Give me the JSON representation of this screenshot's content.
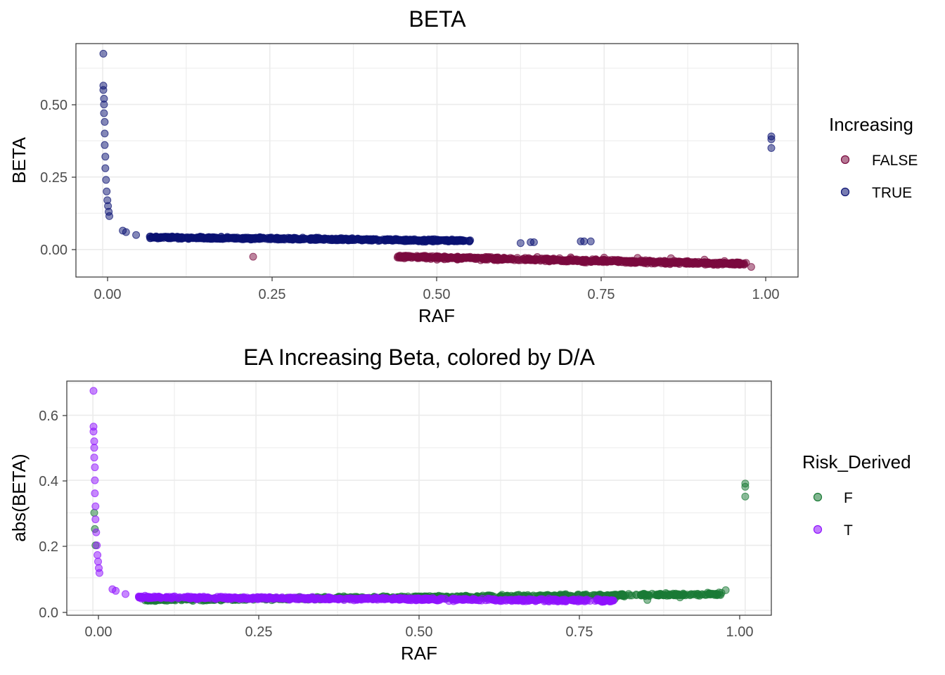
{
  "chart_data": [
    {
      "type": "scatter",
      "title": "BETA",
      "xlabel": "RAF",
      "ylabel": "BETA",
      "xlim": [
        -0.04,
        1.04
      ],
      "ylim": [
        -0.095,
        0.71
      ],
      "xticks": [
        0,
        0.25,
        0.5,
        0.75,
        1.0
      ],
      "xtick_labels": [
        "0.00",
        "0.25",
        "0.50",
        "0.75",
        "1.00"
      ],
      "yticks": [
        0,
        0.25,
        0.5
      ],
      "ytick_labels": [
        "0.00",
        "0.25",
        "0.50"
      ],
      "grid": true,
      "legend": {
        "title": "Increasing",
        "placement": "right",
        "entries": [
          {
            "label": "FALSE",
            "color": "#7a0a3e"
          },
          {
            "label": "TRUE",
            "color": "#0a1172"
          }
        ]
      },
      "series": [
        {
          "name": "FALSE",
          "color": "#7a0a3e",
          "points": [
            [
              0.225,
              -0.025
            ],
            [
              0.45,
              -0.022
            ],
            [
              0.47,
              -0.022
            ],
            [
              0.48,
              -0.022
            ],
            [
              0.5,
              -0.035
            ],
            [
              0.52,
              -0.03
            ],
            [
              0.55,
              -0.028
            ],
            [
              0.6,
              -0.028
            ],
            [
              0.65,
              -0.026
            ],
            [
              0.7,
              -0.027
            ],
            [
              0.75,
              -0.028
            ],
            [
              0.8,
              -0.029
            ],
            [
              0.85,
              -0.03
            ],
            [
              0.9,
              -0.035
            ],
            [
              0.93,
              -0.04
            ],
            [
              0.95,
              -0.048
            ],
            [
              0.97,
              -0.06
            ]
          ],
          "band": {
            "x_from": 0.44,
            "x_to": 0.965,
            "y_start": -0.025,
            "y_end": -0.05,
            "spread": 0.015,
            "count": 700
          }
        },
        {
          "name": "TRUE",
          "color": "#0a1172",
          "points": [
            [
              0.001,
              0.675
            ],
            [
              0.001,
              0.565
            ],
            [
              0.001,
              0.55
            ],
            [
              0.002,
              0.52
            ],
            [
              0.002,
              0.5
            ],
            [
              0.002,
              0.47
            ],
            [
              0.003,
              0.44
            ],
            [
              0.003,
              0.4
            ],
            [
              0.003,
              0.36
            ],
            [
              0.004,
              0.32
            ],
            [
              0.004,
              0.28
            ],
            [
              0.005,
              0.24
            ],
            [
              0.006,
              0.2
            ],
            [
              0.007,
              0.17
            ],
            [
              0.008,
              0.15
            ],
            [
              0.009,
              0.13
            ],
            [
              0.01,
              0.115
            ],
            [
              0.03,
              0.065
            ],
            [
              0.035,
              0.06
            ],
            [
              0.05,
              0.05
            ],
            [
              0.08,
              0.045
            ],
            [
              0.64,
              0.025
            ],
            [
              0.645,
              0.025
            ],
            [
              0.625,
              0.022
            ],
            [
              0.715,
              0.028
            ],
            [
              0.72,
              0.028
            ],
            [
              0.73,
              0.028
            ],
            [
              1.0,
              0.39
            ],
            [
              1.0,
              0.38
            ],
            [
              1.0,
              0.35
            ]
          ],
          "band": {
            "x_from": 0.07,
            "x_to": 0.55,
            "y_start": 0.042,
            "y_end": 0.03,
            "spread": 0.012,
            "count": 650
          }
        }
      ]
    },
    {
      "type": "scatter",
      "title": "EA Increasing Beta, colored by D/A",
      "xlabel": "RAF",
      "ylabel": "abs(BETA)",
      "xlim": [
        -0.04,
        1.04
      ],
      "ylim": [
        -0.015,
        0.705
      ],
      "xticks": [
        0,
        0.25,
        0.5,
        0.75,
        1.0
      ],
      "xtick_labels": [
        "0.00",
        "0.25",
        "0.50",
        "0.75",
        "1.00"
      ],
      "yticks": [
        0,
        0.2,
        0.4,
        0.6
      ],
      "ytick_labels": [
        "0.0",
        "0.2",
        "0.4",
        "0.6"
      ],
      "grid": true,
      "legend": {
        "title": "Risk_Derived",
        "placement": "right",
        "entries": [
          {
            "label": "F",
            "color": "#1a7a35"
          },
          {
            "label": "T",
            "color": "#8f12fe"
          }
        ]
      },
      "series": [
        {
          "name": "F",
          "color": "#1a7a35",
          "points": [
            [
              0.002,
              0.3
            ],
            [
              0.003,
              0.25
            ],
            [
              0.004,
              0.2
            ],
            [
              0.7,
              0.04
            ],
            [
              0.8,
              0.035
            ],
            [
              0.85,
              0.032
            ],
            [
              0.9,
              0.04
            ],
            [
              0.93,
              0.045
            ],
            [
              0.95,
              0.05
            ],
            [
              0.96,
              0.055
            ],
            [
              0.97,
              0.062
            ],
            [
              1.0,
              0.39
            ],
            [
              1.0,
              0.38
            ],
            [
              1.0,
              0.35
            ]
          ],
          "band": {
            "x_from": 0.08,
            "x_to": 0.965,
            "y_start": 0.032,
            "y_end": 0.05,
            "spread": 0.012,
            "count": 650
          }
        },
        {
          "name": "T",
          "color": "#8f12fe",
          "points": [
            [
              0.001,
              0.675
            ],
            [
              0.001,
              0.565
            ],
            [
              0.001,
              0.55
            ],
            [
              0.002,
              0.52
            ],
            [
              0.002,
              0.5
            ],
            [
              0.002,
              0.47
            ],
            [
              0.003,
              0.44
            ],
            [
              0.003,
              0.4
            ],
            [
              0.003,
              0.36
            ],
            [
              0.004,
              0.32
            ],
            [
              0.004,
              0.28
            ],
            [
              0.005,
              0.24
            ],
            [
              0.006,
              0.2
            ],
            [
              0.007,
              0.17
            ],
            [
              0.008,
              0.15
            ],
            [
              0.009,
              0.13
            ],
            [
              0.01,
              0.115
            ],
            [
              0.03,
              0.065
            ],
            [
              0.035,
              0.06
            ],
            [
              0.05,
              0.05
            ],
            [
              0.08,
              0.045
            ]
          ],
          "band": {
            "x_from": 0.07,
            "x_to": 0.8,
            "y_start": 0.04,
            "y_end": 0.03,
            "spread": 0.012,
            "count": 600
          }
        }
      ]
    }
  ]
}
